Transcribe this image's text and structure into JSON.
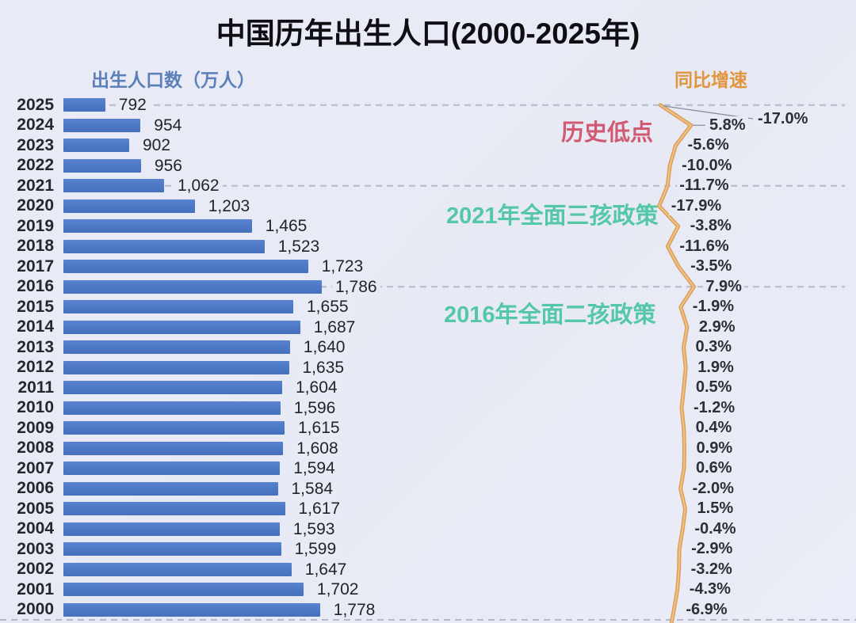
{
  "title": "中国历年出生人口(2000-2025年)",
  "left_axis_label": "出生人口数（万人）",
  "right_axis_label": "同比增速",
  "annotations": {
    "historic_low": {
      "text": "历史低点",
      "color": "#d05a72"
    },
    "policy_2021": {
      "text": "2021年全面三孩政策",
      "color": "#54c7a6"
    },
    "policy_2016": {
      "text": "2016年全面二孩政策",
      "color": "#54c7a6"
    }
  },
  "colors": {
    "background": "#e8eaf5",
    "bar": "#4b77c5",
    "line": "#dc9f58",
    "line_highlight": "#eec28a",
    "gridline": "#b5b9cc",
    "callout": "#8b8fa0",
    "text": "#26262e",
    "title": "#0e0e13",
    "left_axis": "#5b7fb8",
    "right_axis": "#e2953f"
  },
  "chart_data": {
    "type": "bar",
    "orientation": "horizontal-bars-with-line",
    "title": "中国历年出生人口(2000-2025年)",
    "xlabel": "出生人口数（万人）",
    "ylabel": "同比增速",
    "categories": [
      "2025",
      "2024",
      "2023",
      "2022",
      "2021",
      "2020",
      "2019",
      "2018",
      "2017",
      "2016",
      "2015",
      "2014",
      "2013",
      "2012",
      "2011",
      "2010",
      "2009",
      "2008",
      "2007",
      "2006",
      "2005",
      "2004",
      "2003",
      "2002",
      "2001",
      "2000"
    ],
    "series": [
      {
        "name": "出生人口数(万人)",
        "type": "bar",
        "color": "#4b77c5",
        "values": [
          792,
          954,
          902,
          956,
          1062,
          1203,
          1465,
          1523,
          1723,
          1786,
          1655,
          1687,
          1640,
          1635,
          1604,
          1596,
          1615,
          1608,
          1594,
          1584,
          1617,
          1593,
          1599,
          1647,
          1702,
          1778
        ],
        "labels": [
          "792",
          "954",
          "902",
          "956",
          "1,062",
          "1,203",
          "1,465",
          "1,523",
          "1,723",
          "1,786",
          "1,655",
          "1,687",
          "1,640",
          "1,635",
          "1,604",
          "1,596",
          "1,615",
          "1,608",
          "1,594",
          "1,584",
          "1,617",
          "1,593",
          "1,599",
          "1,647",
          "1,702",
          "1,778"
        ]
      },
      {
        "name": "同比增速",
        "type": "line",
        "color": "#dc9f58",
        "values": [
          -17.0,
          5.8,
          -5.6,
          -10.0,
          -11.7,
          -17.9,
          -3.8,
          -11.6,
          -3.5,
          7.9,
          -1.9,
          2.9,
          0.3,
          1.9,
          0.5,
          -1.2,
          0.4,
          0.9,
          0.6,
          -2.0,
          1.5,
          -0.4,
          -2.9,
          -3.2,
          -4.3,
          -6.9
        ],
        "labels": [
          "-17.0%",
          "5.8%",
          "-5.6%",
          "-10.0%",
          "-11.7%",
          "-17.9%",
          "-3.8%",
          "-11.6%",
          "-3.5%",
          "7.9%",
          "-1.9%",
          "2.9%",
          "0.3%",
          "1.9%",
          "0.5%",
          "-1.2%",
          "0.4%",
          "0.9%",
          "0.6%",
          "-2.0%",
          "1.5%",
          "-0.4%",
          "-2.9%",
          "-3.2%",
          "-4.3%",
          "-6.9%"
        ]
      }
    ],
    "bar_axis_min": 600,
    "bar_axis_max": 1786,
    "gridline_rows": [
      "2025",
      "2021",
      "2016"
    ],
    "grid": "dashed-horizontal-on-key-years",
    "legend_position": "none"
  }
}
